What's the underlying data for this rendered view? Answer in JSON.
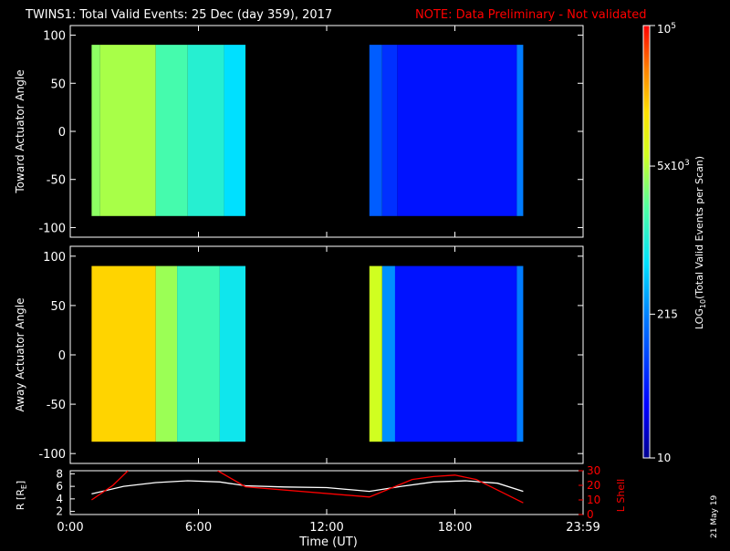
{
  "header": {
    "title": "TWINS1: Total Valid Events: 25 Dec (day 359), 2017",
    "note": "NOTE: Data Preliminary - Not validated"
  },
  "colors": {
    "background": "#000000",
    "foreground": "#ffffff",
    "note": "#ff0000",
    "lshell": "#ff0000",
    "radius": "#ffffff"
  },
  "chart_data": [
    {
      "type": "heatmap",
      "panel": "top",
      "ylabel": "Toward Actuator Angle",
      "xlim": [
        0,
        24
      ],
      "ylim": [
        -110,
        110
      ],
      "yticks": [
        "100",
        "50",
        "0",
        "-50",
        "-100"
      ],
      "y_extent": [
        -88,
        90
      ],
      "x_extent_hours": [
        [
          1.0,
          8.2
        ],
        [
          14.0,
          21.2
        ]
      ],
      "colorscale_log10_events": [
        1.0,
        5.0
      ],
      "blocks": [
        {
          "x": [
            1.0,
            1.4
          ],
          "log10": 3.55
        },
        {
          "x": [
            1.4,
            4.0
          ],
          "log10": 3.65
        },
        {
          "x": [
            4.0,
            5.5
          ],
          "log10": 3.25
        },
        {
          "x": [
            5.5,
            7.2
          ],
          "log10": 3.05
        },
        {
          "x": [
            7.2,
            8.2
          ],
          "log10": 2.8
        },
        {
          "x": [
            14.0,
            14.6
          ],
          "log10": 2.1
        },
        {
          "x": [
            14.6,
            15.3
          ],
          "log10": 1.8
        },
        {
          "x": [
            15.3,
            20.9
          ],
          "log10": 1.6
        },
        {
          "x": [
            20.9,
            21.2
          ],
          "log10": 2.3
        }
      ]
    },
    {
      "type": "heatmap",
      "panel": "middle",
      "ylabel": "Away Actuator Angle",
      "xlim": [
        0,
        24
      ],
      "ylim": [
        -110,
        110
      ],
      "yticks": [
        "100",
        "50",
        "0",
        "-50",
        "-100"
      ],
      "y_extent": [
        -88,
        90
      ],
      "x_extent_hours": [
        [
          1.0,
          8.2
        ],
        [
          14.0,
          21.2
        ]
      ],
      "colorscale_log10_events": [
        1.0,
        5.0
      ],
      "blocks": [
        {
          "x": [
            1.0,
            4.0
          ],
          "log10": 4.25
        },
        {
          "x": [
            4.0,
            5.0
          ],
          "log10": 3.6
        },
        {
          "x": [
            5.0,
            7.0
          ],
          "log10": 3.2
        },
        {
          "x": [
            7.0,
            8.2
          ],
          "log10": 2.9
        },
        {
          "x": [
            14.0,
            14.6
          ],
          "log10": 3.8
        },
        {
          "x": [
            14.6,
            15.2
          ],
          "log10": 2.4
        },
        {
          "x": [
            15.2,
            20.9
          ],
          "log10": 1.6
        },
        {
          "x": [
            20.9,
            21.2
          ],
          "log10": 2.3
        }
      ]
    },
    {
      "type": "line",
      "panel": "bottom",
      "ylabel": "R [R",
      "ylabel_sub": "E",
      "ylabel_close": "]",
      "ylabel_right": "L Shell",
      "xlabel": "Time (UT)",
      "xlim": [
        0,
        24
      ],
      "ylim": [
        1.5,
        8.5
      ],
      "y2lim": [
        0,
        30
      ],
      "xticks": [
        "0:00",
        "6:00",
        "12:00",
        "18:00",
        "23:59"
      ],
      "xtick_hours": [
        0,
        6,
        12,
        18,
        24
      ],
      "yticks": [
        "8",
        "6",
        "4",
        "2"
      ],
      "y2ticks": [
        "30",
        "20",
        "10",
        "0"
      ],
      "series": [
        {
          "axis": "left",
          "x": [
            1.0,
            2.5,
            4.0,
            5.5,
            7.0,
            8.2,
            10.0,
            12.0,
            14.0,
            15.5,
            17.0,
            18.5,
            20.0,
            21.2
          ],
          "values": [
            4.8,
            6.0,
            6.6,
            6.9,
            6.7,
            6.1,
            5.9,
            5.8,
            5.2,
            6.0,
            6.7,
            6.9,
            6.5,
            5.2
          ]
        },
        {
          "axis": "right",
          "segments": [
            {
              "x": [
                1.0,
                2.0,
                2.7
              ],
              "values": [
                10,
                20,
                30
              ]
            },
            {
              "x": [
                6.9,
                8.2,
                14.0,
                16.0,
                17.0,
                18.0,
                19.0,
                21.2
              ],
              "values": [
                30,
                19,
                12,
                24,
                26,
                27,
                24,
                8
              ]
            }
          ]
        }
      ]
    }
  ],
  "colorbar": {
    "label": "LOG",
    "label_sub": "10",
    "label_rest": "(Total Valid Events per Scan)",
    "ticks": [
      {
        "base": "10",
        "exp": "5",
        "value": 5.0
      },
      {
        "base": "5x10",
        "exp": "3",
        "value": 3.7
      },
      {
        "base": "215",
        "exp": "",
        "value": 2.33
      },
      {
        "base": "10",
        "exp": "",
        "value": 1.0
      }
    ]
  },
  "footer": {
    "date_stamp": "21 May 19"
  }
}
